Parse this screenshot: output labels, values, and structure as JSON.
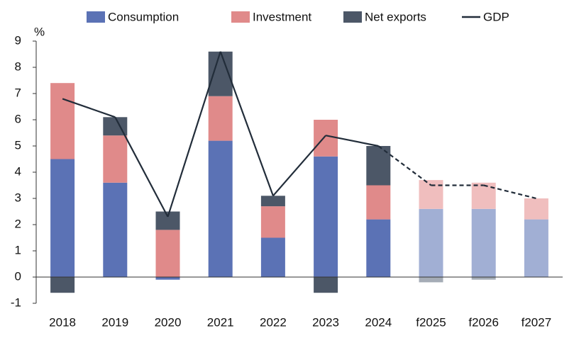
{
  "chart_data": {
    "type": "stacked-bar-line",
    "y_label": "%",
    "categories": [
      "2018",
      "2019",
      "2020",
      "2021",
      "2022",
      "2023",
      "2024",
      "f2025",
      "f2026",
      "f2027"
    ],
    "series": [
      {
        "name": "Consumption",
        "type": "bar",
        "color": "#5b72b5",
        "forecast_color": "#a1afd4",
        "values": [
          4.5,
          3.6,
          -0.1,
          5.2,
          1.5,
          4.6,
          2.2,
          2.6,
          2.6,
          2.2
        ]
      },
      {
        "name": "Investment",
        "type": "bar",
        "color": "#e08a8a",
        "forecast_color": "#f0bebe",
        "values": [
          2.9,
          1.8,
          1.8,
          1.7,
          1.2,
          1.4,
          1.3,
          1.1,
          1.0,
          0.8
        ]
      },
      {
        "name": "Net exports",
        "type": "bar",
        "color": "#4c5767",
        "forecast_color": "#a5acb6",
        "values": [
          -0.6,
          0.7,
          0.7,
          1.7,
          0.4,
          -0.6,
          1.5,
          -0.2,
          -0.1,
          0
        ]
      },
      {
        "name": "GDP",
        "type": "line",
        "color": "#222d3a",
        "values": [
          6.8,
          6.1,
          2.3,
          8.6,
          3.1,
          5.4,
          5.0,
          3.5,
          3.5,
          3.0
        ]
      }
    ],
    "ylim": [
      -1,
      9
    ],
    "yticks": [
      -1,
      0,
      1,
      2,
      3,
      4,
      5,
      6,
      7,
      8,
      9
    ],
    "grid": false
  }
}
